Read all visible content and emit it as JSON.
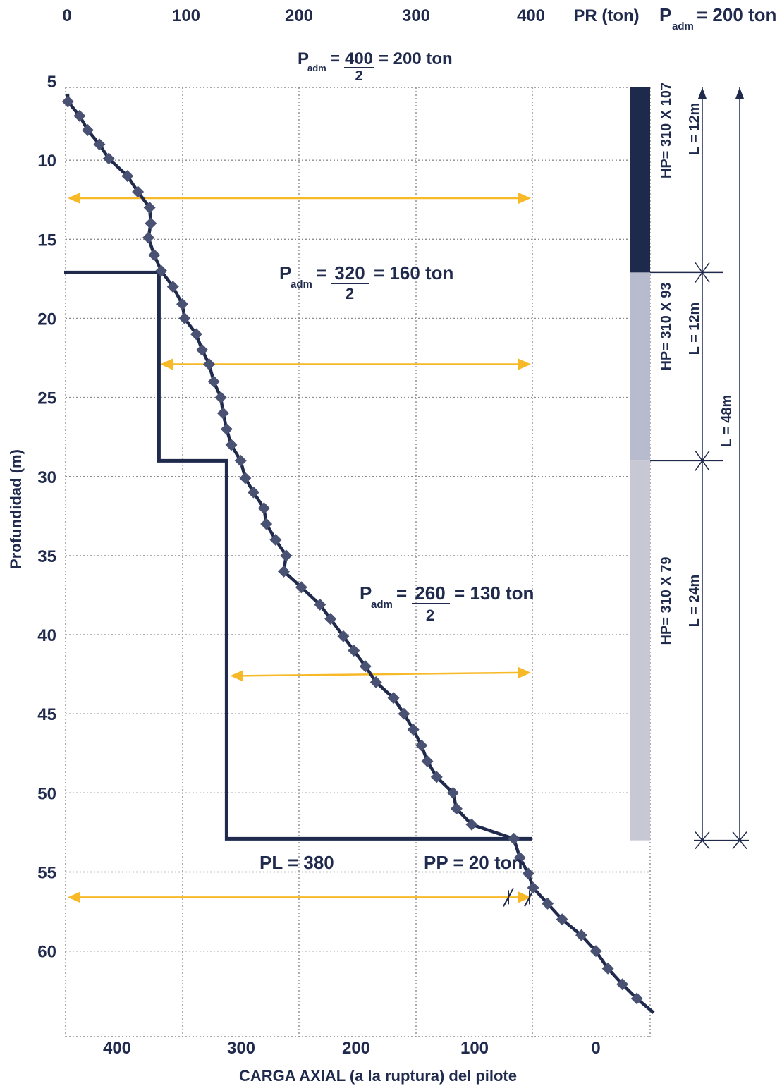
{
  "chart_data": {
    "type": "line",
    "title": "",
    "xlabel_top": "PR (ton)",
    "xlabel_bottom": "CARGA AXIAL (a la ruptura) del pilote",
    "ylabel": "Profundidad (m)",
    "top_axis": {
      "ticks": [
        "0",
        "100",
        "200",
        "300",
        "400"
      ],
      "values": [
        0,
        100,
        200,
        300,
        400
      ],
      "range": [
        0,
        500
      ]
    },
    "bottom_axis": {
      "ticks": [
        "400",
        "300",
        "200",
        "100",
        "0"
      ],
      "values": [
        400,
        300,
        200,
        100,
        0
      ],
      "range": [
        440,
        -44
      ],
      "reversed": true
    },
    "y_axis": {
      "ticks": [
        "5",
        "10",
        "15",
        "20",
        "25",
        "30",
        "35",
        "40",
        "45",
        "50",
        "55",
        "60"
      ],
      "values": [
        5,
        10,
        15,
        20,
        25,
        30,
        35,
        40,
        45,
        50,
        55,
        60
      ],
      "range": [
        5,
        65
      ],
      "inverted": true
    },
    "grid": true,
    "series": [
      {
        "kind": "top_scale",
        "x": [
          2,
          12,
          19,
          29,
          37,
          53,
          62,
          72,
          73,
          71,
          76,
          82,
          92,
          100,
          102,
          112,
          117,
          123,
          127,
          133,
          135,
          138,
          142,
          150,
          154,
          161,
          170,
          172,
          180,
          189,
          187,
          202,
          218,
          227,
          238,
          247,
          257,
          266,
          281,
          290,
          298,
          305,
          310,
          318,
          332,
          335,
          348
        ],
        "y": [
          6.3,
          7.2,
          8.1,
          9.0,
          9.9,
          11.0,
          12.0,
          13.0,
          14.0,
          14.9,
          16.0,
          17.0,
          18.0,
          19.1,
          20.0,
          21.0,
          22.0,
          22.9,
          24.0,
          25.0,
          26.0,
          27.0,
          28.0,
          29.0,
          30.1,
          31.0,
          32.0,
          33.0,
          34.0,
          35.0,
          36.0,
          37.0,
          38.1,
          39.0,
          40.1,
          41.0,
          42.0,
          43.0,
          44.0,
          45.0,
          46.0,
          47.0,
          48.0,
          49.0,
          50.0,
          51.0,
          52.0
        ]
      },
      {
        "kind": "bottom_scale",
        "x": [
          68,
          63,
          56,
          52,
          40,
          28,
          12,
          0,
          -10,
          -22,
          -34
        ],
        "y": [
          52.9,
          54.1,
          55.1,
          56.0,
          57.0,
          58.0,
          59.0,
          60.0,
          61.1,
          62.1,
          63.0
        ]
      }
    ],
    "step_line": {
      "x": [
        0,
        80,
        80,
        138,
        138,
        400
      ],
      "y": [
        17.1,
        17.1,
        29.0,
        29.0,
        52.9,
        52.9
      ]
    },
    "annotations": [
      {
        "id": "padm1",
        "P": "P",
        "sub": "adm",
        "eq": "=",
        "num": "400",
        "den": "2",
        "result": "= 200 ton"
      },
      {
        "id": "padm2",
        "P": "P",
        "sub": "adm",
        "eq": "=",
        "num": "320",
        "den": "2",
        "result": "= 160 ton"
      },
      {
        "id": "padm3",
        "P": "P",
        "sub": "adm",
        "eq": "=",
        "num": "260",
        "den": "2",
        "result": "= 130 ton"
      },
      {
        "id": "padm_top",
        "P": "P",
        "sub": "adm",
        "result": "= 200 ton"
      }
    ],
    "labels": {
      "pl": "PL = 380",
      "pp": "PP = 20 ton"
    },
    "arrows": [
      {
        "from_x": 0,
        "to_x": 400,
        "y": 12.4,
        "color": "#f7b928"
      },
      {
        "from_x": 81,
        "to_x": 400,
        "y": 22.9,
        "color": "#f7b928"
      },
      {
        "from_x": 141,
        "to_x": 400,
        "y": 42.6,
        "y_end": 42.4,
        "color": "#f7b928"
      },
      {
        "from_x": 0,
        "to_x": 400,
        "y": 56.6,
        "color": "#f7b928"
      }
    ],
    "pile_sections": [
      {
        "label": "HP= 310 X 107",
        "length": "L = 12m",
        "from": 5.4,
        "to": 17.1,
        "color": "#1e2a4c"
      },
      {
        "label": "HP= 310 X 93",
        "length": "L = 12m",
        "from": 17.1,
        "to": 29.0,
        "color": "#b7bbcd"
      },
      {
        "label": "HP= 310 X 79",
        "length": "L = 24m",
        "from": 29.0,
        "to": 53.0,
        "color": "#c8c8d4"
      }
    ],
    "total_length": "L = 48m",
    "colors": {
      "navy": "#1f2a4d",
      "marker": "#4a5274",
      "arrow": "#f7b928",
      "grid": "#8c8c8c"
    }
  }
}
